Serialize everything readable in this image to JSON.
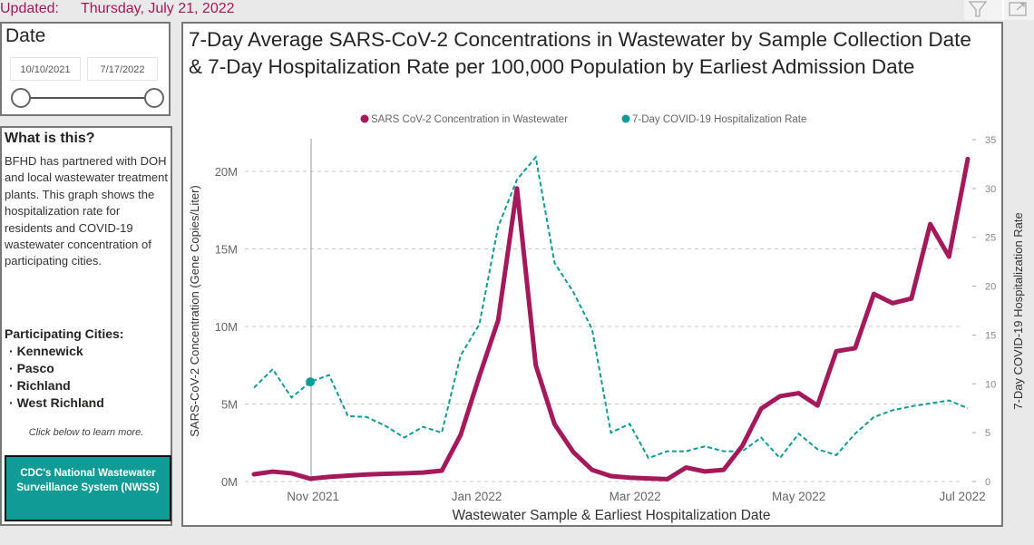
{
  "header": {
    "updated_label": "Updated:",
    "updated_date": "Thursday, July 21, 2022"
  },
  "date_filter": {
    "title": "Date",
    "start": "10/10/2021",
    "end": "7/17/2022"
  },
  "info": {
    "title": "What is this?",
    "body": "BFHD has partnered with DOH and local wastewater treatment plants. This graph shows the hospitalization rate for residents and COVID-19 wastewater concentration of participating cities.",
    "cities_title": "Participating Cities:",
    "cities": [
      "Kennewick",
      "Pasco",
      "Richland",
      "West Richland"
    ],
    "learn_more": "Click below to learn more.",
    "nwss_button": "CDC's National Wastewater Surveillance System (NWSS)"
  },
  "toolbar": {
    "icons": [
      "filter-icon",
      "expand-icon"
    ]
  },
  "colors": {
    "wastewater": "#a3195b",
    "hospitalization": "#119b96"
  },
  "chart_data": {
    "type": "line",
    "title": "7-Day Average SARS-CoV-2 Concentrations in Wastewater by Sample Collection Date & 7-Day Hospitalization Rate per 100,000 Population by Earliest Admission Date",
    "xlabel": "Wastewater Sample & Earliest Hospitalization Date",
    "ylabel": "SARS-CoV-2 Concentration (Gene Copies/Liter)",
    "y2label": "7-Day COVID-19 Hospitalization Rate",
    "legend_position": "top",
    "grid": true,
    "x_ticks": [
      {
        "date": "2021-11-01",
        "label": "Nov 2021"
      },
      {
        "date": "2022-01-01",
        "label": "Jan 2022"
      },
      {
        "date": "2022-03-01",
        "label": "Mar 2022"
      },
      {
        "date": "2022-05-01",
        "label": "May 2022"
      },
      {
        "date": "2022-07-01",
        "label": "Jul 2022"
      }
    ],
    "y_ticks": [
      "0M",
      "5M",
      "10M",
      "15M",
      "20M"
    ],
    "ylim": [
      0,
      22000000
    ],
    "y2_ticks": [
      "0",
      "5",
      "10",
      "15",
      "20",
      "25",
      "30",
      "35"
    ],
    "y2lim": [
      0,
      35
    ],
    "x_start": "2021-10-10",
    "x_interval_days": 7,
    "series": [
      {
        "name": "SARS CoV-2 Concentration in Wastewater",
        "axis": "left",
        "style": "solid",
        "values_millions": [
          0.47,
          0.64,
          0.53,
          0.18,
          0.3,
          0.38,
          0.45,
          0.5,
          0.53,
          0.58,
          0.7,
          3.0,
          6.8,
          10.4,
          18.9,
          7.5,
          3.7,
          1.9,
          0.75,
          0.35,
          0.25,
          0.2,
          0.15,
          0.9,
          0.65,
          0.75,
          2.3,
          4.7,
          5.5,
          5.7,
          4.9,
          8.4,
          8.6,
          12.1,
          11.5,
          11.8,
          16.6,
          14.5,
          20.8
        ]
      },
      {
        "name": "7-Day COVID-19 Hospitalization Rate",
        "axis": "right",
        "style": "dashed",
        "values": [
          9.6,
          11.5,
          8.6,
          10.2,
          10.9,
          6.7,
          6.6,
          5.7,
          4.5,
          5.6,
          5.0,
          12.9,
          16.1,
          26.1,
          30.9,
          33.2,
          22.4,
          19.4,
          15.6,
          5.0,
          5.9,
          2.4,
          3.1,
          3.1,
          3.6,
          3.1,
          3.1,
          4.5,
          2.4,
          4.9,
          3.3,
          2.7,
          4.9,
          6.6,
          7.3,
          7.7,
          8.0,
          8.3,
          7.5
        ]
      }
    ],
    "highlighted_point": {
      "series": "7-Day COVID-19 Hospitalization Rate",
      "date": "2021-10-31"
    }
  }
}
